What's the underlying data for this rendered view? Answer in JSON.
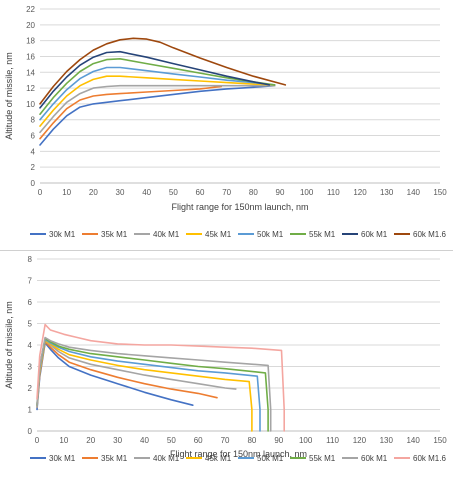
{
  "chart_data": [
    {
      "type": "line",
      "xlabel": "Flight range for 150nm launch, nm",
      "ylabel": "Altitude of missile, nm",
      "xlim": [
        0,
        150
      ],
      "ylim": [
        0,
        22
      ],
      "xticks": [
        0,
        10,
        20,
        30,
        40,
        50,
        60,
        70,
        80,
        90,
        100,
        110,
        120,
        130,
        140,
        150
      ],
      "yticks": [
        0,
        2,
        4,
        6,
        8,
        10,
        12,
        14,
        16,
        18,
        20,
        22
      ],
      "grid": true,
      "legend": "bottom",
      "series": [
        {
          "name": "30k M1",
          "color": "#4472C4",
          "x": [
            0,
            5,
            10,
            15,
            20,
            30,
            40,
            50,
            60,
            70,
            80,
            88
          ],
          "y": [
            4.8,
            6.8,
            8.5,
            9.6,
            10.0,
            10.4,
            10.8,
            11.2,
            11.6,
            11.9,
            12.1,
            12.3
          ]
        },
        {
          "name": "35k M1",
          "color": "#ED7D31",
          "x": [
            0,
            5,
            10,
            15,
            20,
            25,
            30,
            40,
            50,
            60,
            68
          ],
          "y": [
            5.6,
            7.6,
            9.4,
            10.5,
            11.0,
            11.2,
            11.3,
            11.5,
            11.7,
            11.9,
            12.2
          ]
        },
        {
          "name": "40k M1",
          "color": "#A5A5A5",
          "x": [
            0,
            5,
            10,
            15,
            20,
            25,
            30,
            40,
            50,
            60,
            70,
            80,
            88
          ],
          "y": [
            6.4,
            8.4,
            10.2,
            11.3,
            12.0,
            12.2,
            12.3,
            12.3,
            12.3,
            12.3,
            12.3,
            12.3,
            12.3
          ]
        },
        {
          "name": "45k M1",
          "color": "#FFC000",
          "x": [
            0,
            5,
            10,
            15,
            20,
            25,
            30,
            40,
            50,
            60,
            70,
            80,
            88
          ],
          "y": [
            7.2,
            9.2,
            11.0,
            12.3,
            13.1,
            13.5,
            13.5,
            13.3,
            13.1,
            12.9,
            12.7,
            12.5,
            12.4
          ]
        },
        {
          "name": "50k M1",
          "color": "#5B9BD5",
          "x": [
            0,
            5,
            10,
            15,
            20,
            25,
            30,
            40,
            50,
            60,
            70,
            80,
            88
          ],
          "y": [
            8.0,
            10.0,
            11.8,
            13.2,
            14.1,
            14.6,
            14.6,
            14.2,
            13.8,
            13.4,
            13.0,
            12.7,
            12.4
          ]
        },
        {
          "name": "55k M1",
          "color": "#70AD47",
          "x": [
            0,
            5,
            10,
            15,
            20,
            25,
            30,
            40,
            50,
            60,
            70,
            80,
            88
          ],
          "y": [
            8.7,
            10.8,
            12.6,
            14.1,
            15.1,
            15.6,
            15.7,
            15.1,
            14.5,
            13.9,
            13.3,
            12.8,
            12.4
          ]
        },
        {
          "name": "60k M1",
          "color": "#264478",
          "x": [
            0,
            5,
            10,
            15,
            20,
            25,
            30,
            40,
            50,
            60,
            70,
            80,
            86
          ],
          "y": [
            9.5,
            11.6,
            13.4,
            14.9,
            15.9,
            16.5,
            16.6,
            15.9,
            15.1,
            14.3,
            13.5,
            12.8,
            12.4
          ]
        },
        {
          "name": "60k M1.6",
          "color": "#9E480E",
          "x": [
            0,
            5,
            10,
            15,
            20,
            25,
            30,
            35,
            40,
            45,
            50,
            60,
            70,
            80,
            92
          ],
          "y": [
            10.0,
            12.2,
            14.1,
            15.6,
            16.8,
            17.6,
            18.1,
            18.3,
            18.2,
            17.8,
            17.1,
            15.8,
            14.6,
            13.5,
            12.4
          ]
        }
      ]
    },
    {
      "type": "line",
      "xlabel": "Flight range for 150nm launch, nm",
      "ylabel": "Altitude of missile, nm",
      "xlim": [
        0,
        150
      ],
      "ylim": [
        0,
        8
      ],
      "xticks": [
        0,
        10,
        20,
        30,
        40,
        50,
        60,
        70,
        80,
        90,
        100,
        110,
        120,
        130,
        140,
        150
      ],
      "yticks": [
        0,
        1,
        2,
        3,
        4,
        5,
        6,
        7,
        8
      ],
      "grid": true,
      "legend": "bottom",
      "series": [
        {
          "name": "30k M1",
          "color": "#4472C4",
          "x": [
            0,
            1,
            3,
            5,
            8,
            12,
            20,
            30,
            40,
            50,
            58
          ],
          "y": [
            1.0,
            2.5,
            4.1,
            3.8,
            3.4,
            3.0,
            2.6,
            2.2,
            1.8,
            1.45,
            1.2
          ]
        },
        {
          "name": "35k M1",
          "color": "#ED7D31",
          "x": [
            0,
            1,
            3,
            5,
            8,
            12,
            20,
            30,
            40,
            50,
            60,
            67
          ],
          "y": [
            1.1,
            2.6,
            4.15,
            3.9,
            3.55,
            3.2,
            2.85,
            2.5,
            2.2,
            1.95,
            1.75,
            1.55
          ]
        },
        {
          "name": "40k M1",
          "color": "#A5A5A5",
          "x": [
            0,
            1,
            3,
            5,
            8,
            12,
            20,
            30,
            40,
            50,
            60,
            70,
            74
          ],
          "y": [
            1.1,
            2.7,
            4.2,
            4.0,
            3.7,
            3.4,
            3.1,
            2.85,
            2.6,
            2.4,
            2.2,
            2.0,
            1.95
          ]
        },
        {
          "name": "45k M1",
          "color": "#FFC000",
          "x": [
            0,
            1,
            3,
            5,
            8,
            12,
            20,
            30,
            40,
            50,
            60,
            70,
            79,
            80,
            80
          ],
          "y": [
            1.2,
            2.8,
            4.2,
            4.05,
            3.8,
            3.55,
            3.3,
            3.05,
            2.85,
            2.7,
            2.55,
            2.4,
            2.3,
            1.0,
            0
          ]
        },
        {
          "name": "50k M1",
          "color": "#5B9BD5",
          "x": [
            0,
            1,
            3,
            5,
            8,
            12,
            20,
            30,
            40,
            50,
            60,
            70,
            82,
            83,
            83
          ],
          "y": [
            1.2,
            2.9,
            4.25,
            4.1,
            3.9,
            3.7,
            3.45,
            3.25,
            3.1,
            2.95,
            2.8,
            2.7,
            2.55,
            1.0,
            0
          ]
        },
        {
          "name": "55k M1",
          "color": "#70AD47",
          "x": [
            0,
            1,
            3,
            5,
            8,
            12,
            20,
            30,
            40,
            50,
            60,
            70,
            85,
            86,
            86
          ],
          "y": [
            1.2,
            3.0,
            4.3,
            4.15,
            3.95,
            3.8,
            3.6,
            3.45,
            3.3,
            3.15,
            3.0,
            2.9,
            2.7,
            1.0,
            0
          ]
        },
        {
          "name": "60k M1",
          "color": "#A5A5A5",
          "x": [
            0,
            1,
            3,
            5,
            8,
            12,
            20,
            30,
            40,
            50,
            60,
            70,
            86,
            87,
            87
          ],
          "y": [
            1.2,
            3.0,
            4.35,
            4.2,
            4.05,
            3.9,
            3.75,
            3.6,
            3.5,
            3.4,
            3.3,
            3.2,
            3.05,
            1.0,
            0
          ]
        },
        {
          "name": "60k M1.6",
          "color": "#F4A6A0",
          "x": [
            0,
            1,
            3,
            5,
            10,
            15,
            20,
            30,
            40,
            50,
            60,
            70,
            80,
            91,
            92,
            92
          ],
          "y": [
            1.5,
            3.5,
            4.95,
            4.7,
            4.5,
            4.35,
            4.2,
            4.05,
            4.0,
            4.0,
            3.95,
            3.9,
            3.85,
            3.75,
            1.0,
            0
          ]
        }
      ]
    }
  ]
}
